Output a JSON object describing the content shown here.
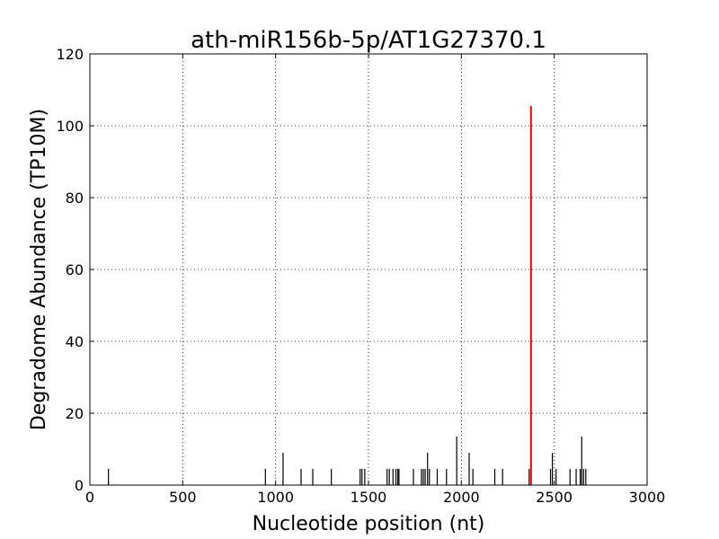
{
  "chart_data": {
    "type": "bar",
    "title": "ath-miR156b-5p/AT1G27370.1",
    "xlabel": "Nucleotide position (nt)",
    "ylabel": "Degradome Abundance (TP10M)",
    "xlim": [
      0,
      3000
    ],
    "ylim": [
      0,
      120
    ],
    "xticks": [
      "0",
      "500",
      "1000",
      "1500",
      "2000",
      "2500",
      "3000"
    ],
    "yticks": [
      "0",
      "20",
      "40",
      "60",
      "80",
      "100",
      "120"
    ],
    "grid": true,
    "grid_style": "dotted",
    "series": [
      {
        "color": "#000000",
        "points": [
          {
            "x": 100,
            "y": 4.5
          },
          {
            "x": 945,
            "y": 4.5
          },
          {
            "x": 1040,
            "y": 9.0
          },
          {
            "x": 1137,
            "y": 4.5
          },
          {
            "x": 1200,
            "y": 4.5
          },
          {
            "x": 1300,
            "y": 4.5
          },
          {
            "x": 1455,
            "y": 4.5
          },
          {
            "x": 1465,
            "y": 4.5
          },
          {
            "x": 1480,
            "y": 4.5
          },
          {
            "x": 1600,
            "y": 4.5
          },
          {
            "x": 1612,
            "y": 4.5
          },
          {
            "x": 1632,
            "y": 4.5
          },
          {
            "x": 1648,
            "y": 4.5
          },
          {
            "x": 1658,
            "y": 4.5
          },
          {
            "x": 1664,
            "y": 4.5
          },
          {
            "x": 1742,
            "y": 4.5
          },
          {
            "x": 1785,
            "y": 4.5
          },
          {
            "x": 1795,
            "y": 4.5
          },
          {
            "x": 1805,
            "y": 4.5
          },
          {
            "x": 1818,
            "y": 9.0
          },
          {
            "x": 1828,
            "y": 4.5
          },
          {
            "x": 1870,
            "y": 4.5
          },
          {
            "x": 1920,
            "y": 4.5
          },
          {
            "x": 1975,
            "y": 13.5
          },
          {
            "x": 2042,
            "y": 9.0
          },
          {
            "x": 2062,
            "y": 4.5
          },
          {
            "x": 2180,
            "y": 4.5
          },
          {
            "x": 2222,
            "y": 4.5
          },
          {
            "x": 2365,
            "y": 4.5
          },
          {
            "x": 2480,
            "y": 4.5
          },
          {
            "x": 2490,
            "y": 9.0
          },
          {
            "x": 2510,
            "y": 4.5
          },
          {
            "x": 2585,
            "y": 4.5
          },
          {
            "x": 2618,
            "y": 4.5
          },
          {
            "x": 2640,
            "y": 4.5
          },
          {
            "x": 2648,
            "y": 13.5
          },
          {
            "x": 2658,
            "y": 4.5
          },
          {
            "x": 2670,
            "y": 4.5
          }
        ]
      },
      {
        "color": "#ff0000",
        "points": [
          {
            "x": 2375,
            "y": 105.5
          }
        ]
      }
    ]
  }
}
